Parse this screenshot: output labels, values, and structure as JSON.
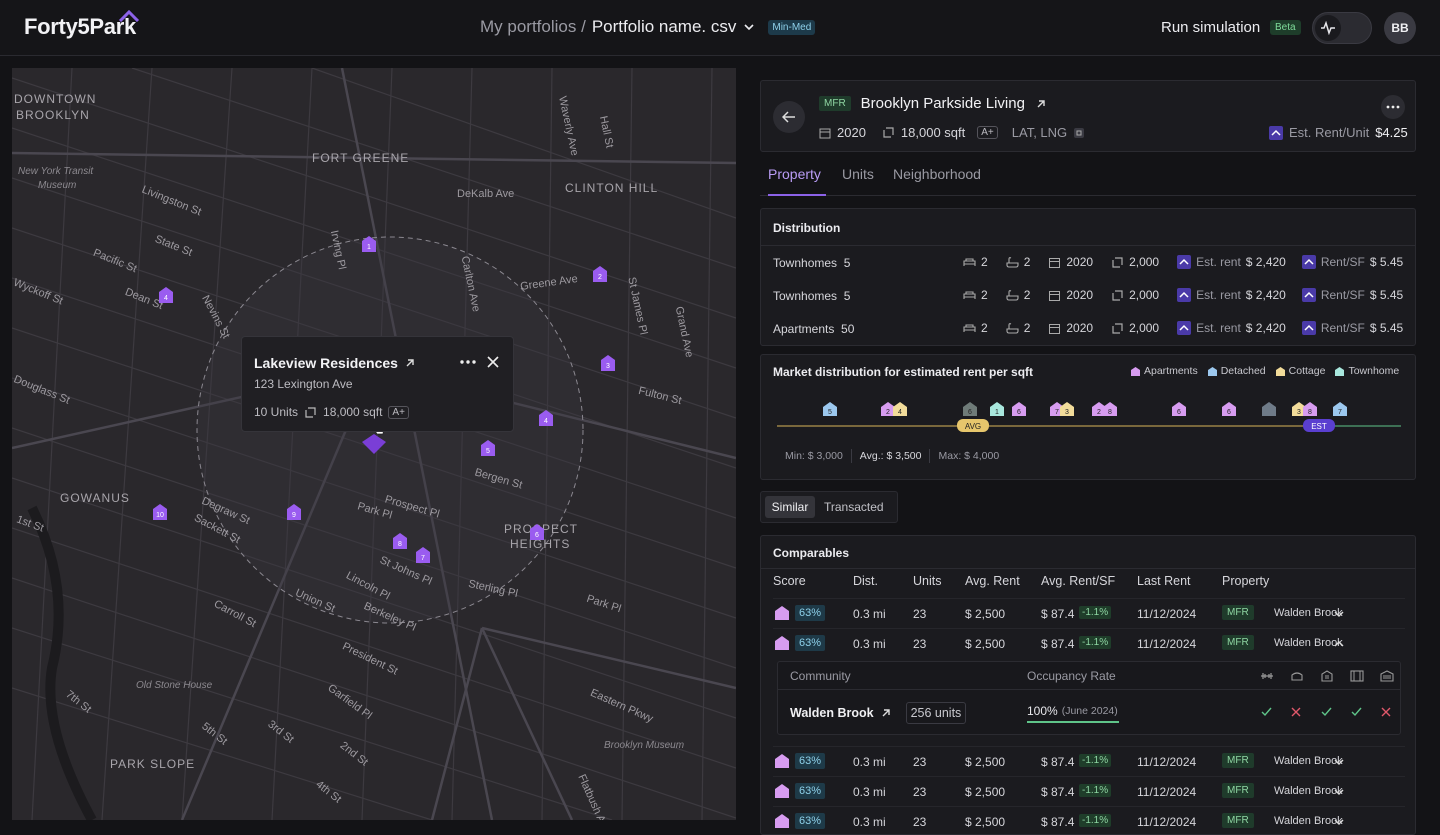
{
  "app": {
    "logo": "Forty5Park",
    "avatar": "BB"
  },
  "header": {
    "crumb_root": "My portfolios /",
    "crumb_current": "Portfolio name. csv",
    "crumb_badge": "Min-Med",
    "run_sim": "Run simulation",
    "beta": "Beta"
  },
  "map": {
    "labels": [
      "DOWNTOWN",
      "BROOKLYN",
      "FORT GREENE",
      "CLINTON HILL",
      "GOWANUS",
      "PROSPECT",
      "HEIGHTS",
      "PARK SLOPE"
    ],
    "streets": [
      "DeKalb Ave",
      "Greene Ave",
      "Fulton St",
      "Livingston St",
      "State St",
      "Pacific St",
      "Dean St",
      "Bergen St",
      "Prospect Pl",
      "Park Pl",
      "St Johns Pl",
      "Sterling Pl",
      "Lincoln Pl",
      "Union St",
      "Berkeley Pl",
      "Carroll St",
      "President St",
      "1st St",
      "Eastern Pkwy",
      "Garfield Pl",
      "Degraw St",
      "Sackett St",
      "Nevins St",
      "Carlton Ave",
      "St James Pl",
      "Grand Ave",
      "Waverly Ave",
      "Hall St",
      "Flatbush Ave",
      "Park Pl",
      "7th St",
      "3rd St",
      "5th St",
      "2nd St",
      "4th St",
      "Wyckoff St",
      "Douglass St",
      "Irving Pl"
    ],
    "places": [
      "New York Transit",
      "Museum",
      "Old Stone House",
      "Brooklyn Museum"
    ],
    "pins": [
      "1",
      "2",
      "3",
      "4",
      "4",
      "5",
      "6",
      "7",
      "8",
      "9",
      "10"
    ],
    "popup": {
      "title": "Lakeview Residences",
      "address": "123 Lexington Ave",
      "units": "10 Units",
      "sqft": "18,000 sqft",
      "grade": "A+"
    }
  },
  "property": {
    "type": "MFR",
    "name": "Brooklyn Parkside Living",
    "year": "2020",
    "sqft": "18,000 sqft",
    "grade": "A+",
    "coords": "LAT, LNG",
    "est_label": "Est. Rent/Unit",
    "est_value": "$4.25"
  },
  "tabs": [
    "Property",
    "Units",
    "Neighborhood"
  ],
  "distribution": {
    "title": "Distribution",
    "rows": [
      {
        "name": "Townhomes",
        "count": "5",
        "beds": "2",
        "baths": "2",
        "year": "2020",
        "sqft": "2,000",
        "rent_label": "Est. rent",
        "rent": "$ 2,420",
        "psf_label": "Rent/SF",
        "psf": "$ 5.45"
      },
      {
        "name": "Townhomes",
        "count": "5",
        "beds": "2",
        "baths": "2",
        "year": "2020",
        "sqft": "2,000",
        "rent_label": "Est. rent",
        "rent": "$ 2,420",
        "psf_label": "Rent/SF",
        "psf": "$ 5.45"
      },
      {
        "name": "Apartments",
        "count": "50",
        "beds": "2",
        "baths": "2",
        "year": "2020",
        "sqft": "2,000",
        "rent_label": "Est. rent",
        "rent": "$ 2,420",
        "psf_label": "Rent/SF",
        "psf": "$ 5.45"
      }
    ]
  },
  "market": {
    "title": "Market distribution for estimated rent per sqft",
    "legend": [
      {
        "label": "Apartments",
        "color": "#d79cf0"
      },
      {
        "label": "Detached",
        "color": "#9cc8ee"
      },
      {
        "label": "Cottage",
        "color": "#f2dc9a"
      },
      {
        "label": "Townhome",
        "color": "#a9e8de"
      }
    ],
    "markers": [
      {
        "n": "5",
        "c": "#9cc8ee"
      },
      {
        "n": "2",
        "c": "#d79cf0"
      },
      {
        "n": "4",
        "c": "#f2dc9a"
      },
      {
        "n": "6",
        "c": "#6f7b78"
      },
      {
        "n": "1",
        "c": "#a9e8de"
      },
      {
        "n": "6",
        "c": "#d79cf0"
      },
      {
        "n": "7",
        "c": "#d79cf0"
      },
      {
        "n": "3",
        "c": "#f2dc9a"
      },
      {
        "n": "2",
        "c": "#d79cf0"
      },
      {
        "n": "8",
        "c": "#d79cf0"
      },
      {
        "n": "6",
        "c": "#d79cf0"
      },
      {
        "n": "6",
        "c": "#d79cf0"
      },
      {
        "n": "",
        "c": "#6f7b88"
      },
      {
        "n": "3",
        "c": "#f2dc9a"
      },
      {
        "n": "8",
        "c": "#d79cf0"
      },
      {
        "n": "7",
        "c": "#9cc8ee"
      }
    ],
    "avg_tag": "AVG",
    "est_tag": "EST",
    "min": "Min: $ 3,000",
    "avg": "Avg.: $ 3,500",
    "max": "Max: $ 4,000"
  },
  "segments": [
    "Similar",
    "Transacted"
  ],
  "comparables": {
    "title": "Comparables",
    "headers": [
      "Score",
      "Dist.",
      "Units",
      "Avg. Rent",
      "Avg. Rent/SF",
      "Last Rent",
      "Property"
    ],
    "rows": [
      {
        "score": "63%",
        "dist": "0.3 mi",
        "units": "23",
        "rent": "$ 2,500",
        "psf": "$ 87.4",
        "chg": "-1.1%",
        "last": "11/12/2024",
        "type": "MFR",
        "name": "Walden Brook"
      },
      {
        "score": "63%",
        "dist": "0.3 mi",
        "units": "23",
        "rent": "$ 2,500",
        "psf": "$ 87.4",
        "chg": "-1.1%",
        "last": "11/12/2024",
        "type": "MFR",
        "name": "Walden Brook"
      },
      {
        "score": "63%",
        "dist": "0.3 mi",
        "units": "23",
        "rent": "$ 2,500",
        "psf": "$ 87.4",
        "chg": "-1.1%",
        "last": "11/12/2024",
        "type": "MFR",
        "name": "Walden Brook"
      },
      {
        "score": "63%",
        "dist": "0.3 mi",
        "units": "23",
        "rent": "$ 2,500",
        "psf": "$ 87.4",
        "chg": "-1.1%",
        "last": "11/12/2024",
        "type": "MFR",
        "name": "Walden Brook"
      },
      {
        "score": "63%",
        "dist": "0.3 mi",
        "units": "23",
        "rent": "$ 2,500",
        "psf": "$ 87.4",
        "chg": "-1.1%",
        "last": "11/12/2024",
        "type": "MFR",
        "name": "Walden Brook"
      }
    ],
    "detail": {
      "col_community": "Community",
      "col_occupancy": "Occupancy Rate",
      "community": "Walden Brook",
      "units": "256 units",
      "occupancy": "100%",
      "occupancy_date": "(June 2024)",
      "amenities": [
        "check",
        "cross",
        "check",
        "check",
        "cross"
      ]
    }
  }
}
